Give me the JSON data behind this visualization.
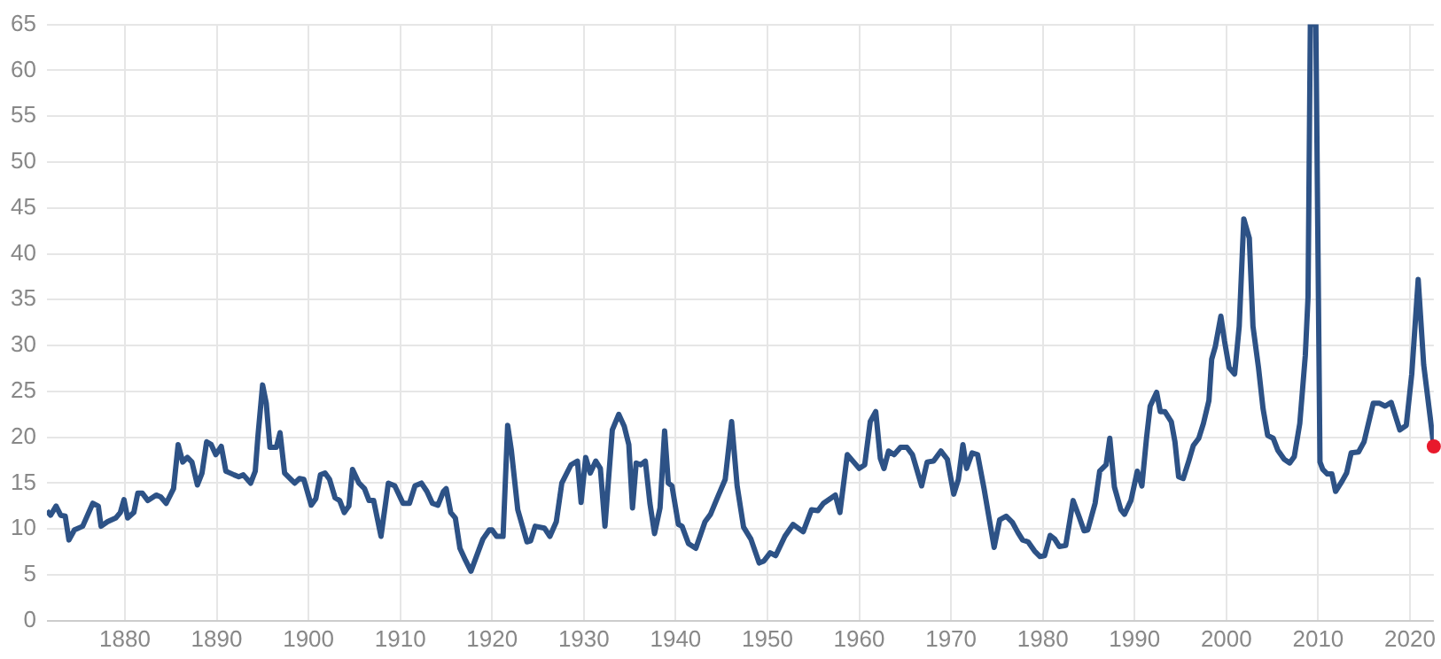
{
  "chart_data": {
    "type": "line",
    "xlim": [
      1871.5,
      2022.6
    ],
    "xticks": [
      1880,
      1890,
      1900,
      1910,
      1920,
      1930,
      1940,
      1950,
      1960,
      1970,
      1980,
      1990,
      2000,
      2010,
      2020
    ],
    "ylim": [
      0,
      65
    ],
    "yticks": [
      0,
      5,
      10,
      15,
      20,
      25,
      30,
      35,
      40,
      45,
      50,
      55,
      60,
      65
    ],
    "grid": true,
    "legend": false,
    "series": [
      {
        "type": "line",
        "color": "#2d5286",
        "marker": "none",
        "x": [
          1871.5,
          1871.9,
          1872.5,
          1873,
          1873.5,
          1873.9,
          1874.5,
          1875.4,
          1876.5,
          1877.1,
          1877.4,
          1878.1,
          1879,
          1879.5,
          1879.9,
          1880.3,
          1880.97,
          1881.4,
          1881.9,
          1882.5,
          1883.4,
          1883.9,
          1884.5,
          1885.3,
          1885.8,
          1886.3,
          1886.8,
          1887.3,
          1887.9,
          1888.4,
          1888.9,
          1889.4,
          1889.9,
          1890.5,
          1891,
          1891.9,
          1892.4,
          1892.9,
          1893.7,
          1894.2,
          1894.5,
          1895,
          1895.4,
          1895.8,
          1896.5,
          1896.9,
          1897.4,
          1898.1,
          1898.5,
          1899,
          1899.5,
          1900.3,
          1900.8,
          1901.3,
          1901.8,
          1902.3,
          1902.9,
          1903.4,
          1903.9,
          1904.4,
          1904.8,
          1905.5,
          1906.1,
          1906.6,
          1907.1,
          1907.9,
          1908.7,
          1909.4,
          1910.3,
          1911,
          1911.6,
          1912.3,
          1912.9,
          1913.5,
          1914.1,
          1914.7,
          1915,
          1915.5,
          1916,
          1916.5,
          1917.1,
          1917.7,
          1919,
          1919.7,
          1920,
          1920.5,
          1921.2,
          1921.7,
          1922.1,
          1922.8,
          1923.8,
          1924.2,
          1924.7,
          1925.7,
          1926.3,
          1927,
          1927.6,
          1928.6,
          1929.3,
          1929.7,
          1930.2,
          1930.7,
          1931.3,
          1931.8,
          1932.3,
          1933.1,
          1933.8,
          1934.4,
          1934.9,
          1935.3,
          1935.7,
          1936.2,
          1936.7,
          1937.2,
          1937.7,
          1938.3,
          1938.8,
          1939.2,
          1939.6,
          1940.3,
          1940.7,
          1941.4,
          1942.2,
          1943.2,
          1943.8,
          1944.5,
          1945.4,
          1946.1,
          1946.7,
          1947.4,
          1948.2,
          1949.1,
          1949.6,
          1950.3,
          1950.9,
          1951.9,
          1952.8,
          1953.9,
          1954.8,
          1955.5,
          1956.1,
          1957.4,
          1957.9,
          1958.7,
          1959.4,
          1960,
          1960.6,
          1961.2,
          1961.8,
          1962.3,
          1962.7,
          1963.2,
          1963.8,
          1964.5,
          1965.2,
          1965.8,
          1966.8,
          1967.4,
          1968.1,
          1968.9,
          1969.6,
          1970.3,
          1970.8,
          1971.3,
          1971.7,
          1972.3,
          1972.9,
          1973.6,
          1974.2,
          1974.7,
          1975.3,
          1976,
          1976.7,
          1977.3,
          1977.8,
          1978.4,
          1979.1,
          1979.7,
          1980.2,
          1980.8,
          1981.3,
          1981.8,
          1982.5,
          1983.3,
          1983.9,
          1984.5,
          1984.9,
          1985.7,
          1986.2,
          1986.9,
          1987.3,
          1987.8,
          1988.5,
          1988.9,
          1989.6,
          1990.3,
          1990.8,
          1991.3,
          1991.7,
          1992.4,
          1992.8,
          1993.3,
          1994,
          1994.4,
          1994.8,
          1995.3,
          1995.9,
          1996.4,
          1997,
          1997.5,
          1998.1,
          1998.4,
          1998.8,
          1999.4,
          1999.8,
          2000.3,
          2000.9,
          2001.4,
          2001.9,
          2002.5,
          2002.9,
          2003.5,
          2004,
          2004.5,
          2005.1,
          2005.6,
          2006.3,
          2006.9,
          2007.4,
          2008,
          2008.6,
          2008.9,
          2009.15,
          2009.75,
          2010.2,
          2010.5,
          2011,
          2011.5,
          2011.9,
          2012.6,
          2013.1,
          2013.6,
          2014.4,
          2015,
          2016,
          2016.7,
          2017.3,
          2017.96,
          2018.9,
          2019.6,
          2020.2,
          2020.9,
          2021.5,
          2022.6
        ],
        "values": [
          12.0,
          11.5,
          12.5,
          11.5,
          11.4,
          8.8,
          9.9,
          10.3,
          12.8,
          12.5,
          10.3,
          10.8,
          11.2,
          11.8,
          13.2,
          11.2,
          11.8,
          13.9,
          13.9,
          13.1,
          13.7,
          13.5,
          12.8,
          14.4,
          19.2,
          17.3,
          17.8,
          17.3,
          14.8,
          16.1,
          19.5,
          19.2,
          18.1,
          19.0,
          16.3,
          15.9,
          15.7,
          15.9,
          15.0,
          16.3,
          20.2,
          25.7,
          23.7,
          18.9,
          18.9,
          20.5,
          16.1,
          15.4,
          15.0,
          15.5,
          15.4,
          12.6,
          13.3,
          15.9,
          16.1,
          15.4,
          13.4,
          13.1,
          11.8,
          12.5,
          16.5,
          15.0,
          14.4,
          13.1,
          13.1,
          9.2,
          15.0,
          14.7,
          12.8,
          12.8,
          14.7,
          15.0,
          14.1,
          12.8,
          12.6,
          14.1,
          14.4,
          11.8,
          11.2,
          7.9,
          6.6,
          5.4,
          8.9,
          9.9,
          9.9,
          9.2,
          9.2,
          21.3,
          18.6,
          12.1,
          8.6,
          8.7,
          10.3,
          10.1,
          9.2,
          10.8,
          15.0,
          17.0,
          17.4,
          12.9,
          17.8,
          16.1,
          17.4,
          16.6,
          10.3,
          20.8,
          22.5,
          21.2,
          19.2,
          12.3,
          17.2,
          17.0,
          17.4,
          12.8,
          9.5,
          12.3,
          20.7,
          15.0,
          14.7,
          10.5,
          10.3,
          8.4,
          7.9,
          10.8,
          11.6,
          13.3,
          15.4,
          21.7,
          14.7,
          10.2,
          8.9,
          6.3,
          6.5,
          7.4,
          7.1,
          9.2,
          10.5,
          9.7,
          12.1,
          12.0,
          12.8,
          13.7,
          11.8,
          18.1,
          17.3,
          16.6,
          17.0,
          21.7,
          22.8,
          17.7,
          16.6,
          18.5,
          18.1,
          18.9,
          18.9,
          18.1,
          14.7,
          17.3,
          17.4,
          18.5,
          17.6,
          13.8,
          15.4,
          19.2,
          16.6,
          18.3,
          18.1,
          14.4,
          10.9,
          8.0,
          11.0,
          11.4,
          10.7,
          9.6,
          8.8,
          8.6,
          7.6,
          7.0,
          7.1,
          9.3,
          8.9,
          8.1,
          8.2,
          13.1,
          11.5,
          9.8,
          9.9,
          12.8,
          16.3,
          17.0,
          19.9,
          14.6,
          12.1,
          11.6,
          13.1,
          16.3,
          14.7,
          19.9,
          23.4,
          24.9,
          22.8,
          22.8,
          21.7,
          19.5,
          15.7,
          15.5,
          17.4,
          19.1,
          19.9,
          21.5,
          24.0,
          28.5,
          29.9,
          33.2,
          30.5,
          27.6,
          26.9,
          32.1,
          43.8,
          41.7,
          32.1,
          27.6,
          23.1,
          20.2,
          19.9,
          18.6,
          17.6,
          17.2,
          17.9,
          21.5,
          28.9,
          35.3,
          65,
          65,
          17.3,
          16.5,
          16.0,
          16.0,
          14.1,
          15.2,
          16.1,
          18.3,
          18.4,
          19.5,
          23.7,
          23.7,
          23.4,
          23.8,
          20.8,
          21.3,
          26.9,
          37.2,
          27.9,
          19.0
        ]
      },
      {
        "type": "scatter",
        "color": "#e8192c",
        "marker": "circle",
        "x": [
          2022.6
        ],
        "values": [
          19.0
        ]
      }
    ]
  }
}
